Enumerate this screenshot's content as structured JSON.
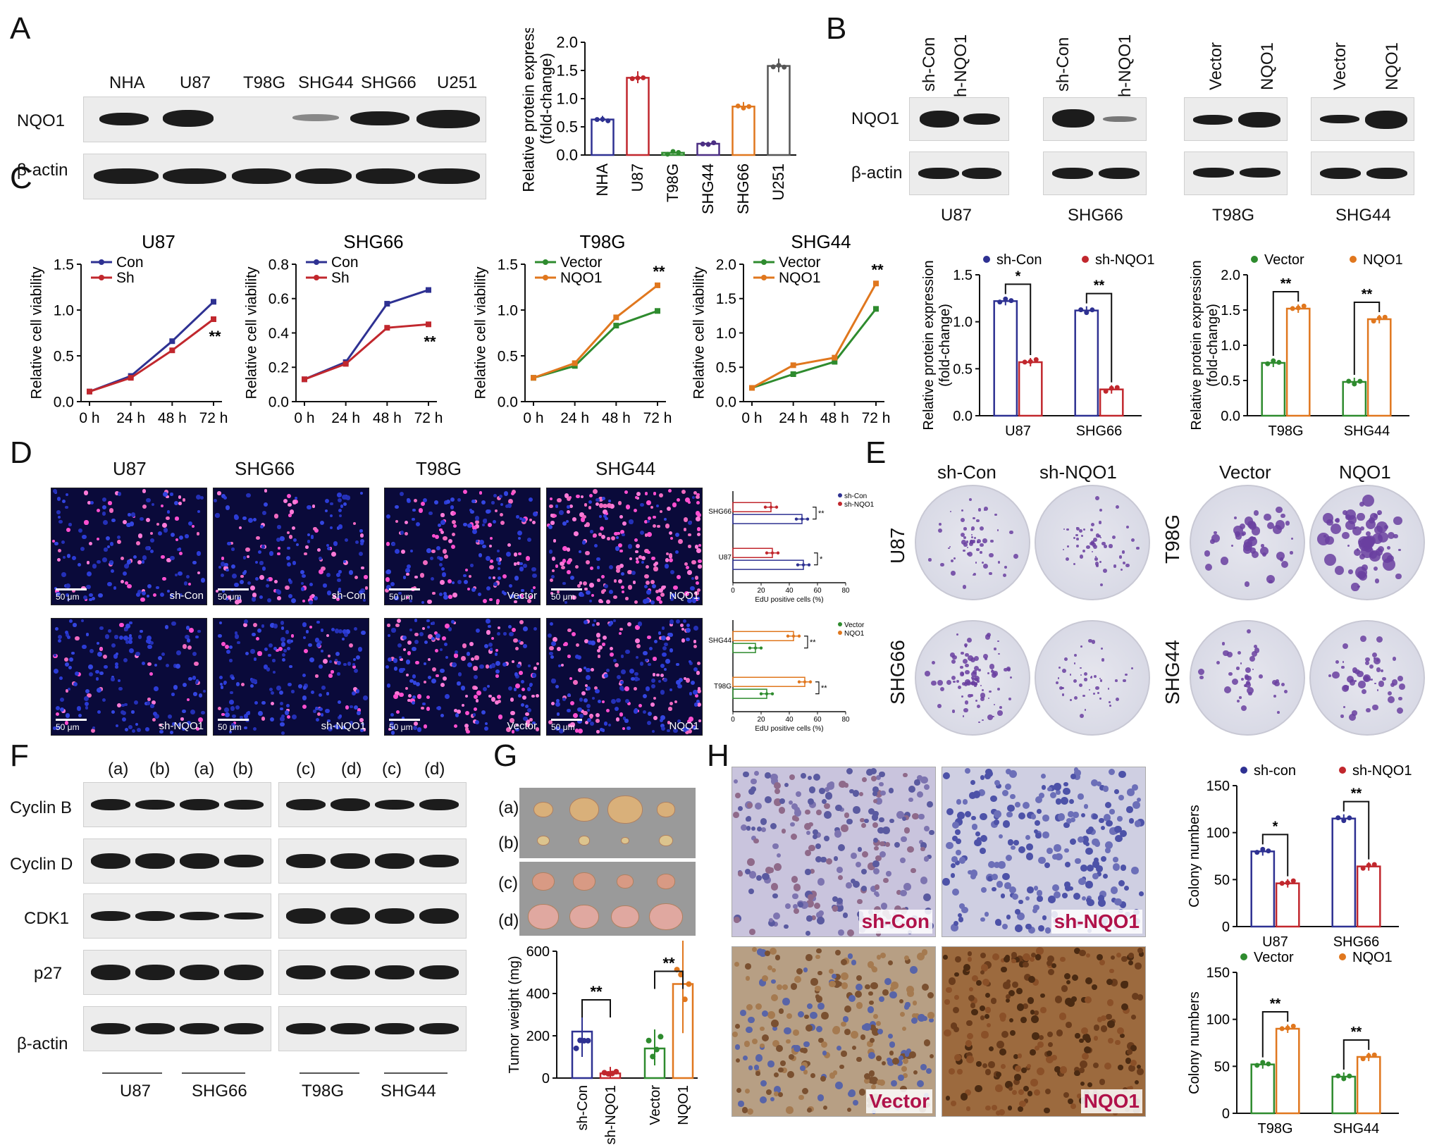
{
  "panels": {
    "A": "A",
    "B": "B",
    "C": "C",
    "D": "D",
    "E": "E",
    "F": "F",
    "G": "G",
    "H": "H"
  },
  "panelA": {
    "lanes": [
      "NHA",
      "U87",
      "T98G",
      "SHG44",
      "SHG66",
      "U251"
    ],
    "rows": [
      "NQO1",
      "β-actin"
    ]
  },
  "panelB": {
    "lane_labels": [
      "sh-Con",
      "sh-NQO1",
      "sh-Con",
      "sh-NQO1",
      "Vector",
      "NQO1",
      "Vector",
      "NQO1"
    ],
    "rows": [
      "NQO1",
      "β-actin"
    ],
    "groups": [
      "U87",
      "SHG66",
      "T98G",
      "SHG44"
    ]
  },
  "panelD": {
    "top_titles": [
      "U87",
      "SHG66",
      "T98G",
      "SHG44"
    ],
    "row1_corner": [
      "sh-Con",
      "sh-Con",
      "Vector",
      "NQO1"
    ],
    "row2_corner": [
      "sh-NQO1",
      "sh-NQO1",
      "Vector",
      "NQO1"
    ],
    "scale": "50 μm"
  },
  "panelE": {
    "col_titles": [
      "sh-Con",
      "sh-NQO1",
      "Vector",
      "NQO1"
    ],
    "row_labels": [
      "U87",
      "SHG66",
      "T98G",
      "SHG44"
    ]
  },
  "panelF": {
    "lane_codes": [
      "(a)",
      "(b)",
      "(a)",
      "(b)",
      "(c)",
      "(d)",
      "(c)",
      "(d)"
    ],
    "rows": [
      "Cyclin B",
      "Cyclin D",
      "CDK1",
      "p27",
      "β-actin"
    ],
    "groups": [
      "U87",
      "SHG66",
      "T98G",
      "SHG44"
    ]
  },
  "panelG": {
    "rows": [
      "(a)",
      "(b)",
      "(c)",
      "(d)"
    ]
  },
  "panelH": {
    "labels": [
      "sh-Con",
      "sh-NQO1",
      "Vector",
      "NQO1"
    ]
  },
  "chart_data": [
    {
      "id": "A-bar",
      "type": "bar",
      "categories": [
        "NHA",
        "U87",
        "T98G",
        "SHG44",
        "SHG66",
        "U251"
      ],
      "values": [
        0.63,
        1.37,
        0.04,
        0.2,
        0.86,
        1.58
      ],
      "colors": [
        "#2e3192",
        "#c1272d",
        "#2e8b2e",
        "#4b2e83",
        "#e0771e",
        "#555555"
      ],
      "ylabel": "Relative protein expression\n(fold-change)",
      "ylim": [
        0,
        2.0
      ],
      "yticks": [
        0.0,
        0.5,
        1.0,
        1.5,
        2.0
      ]
    },
    {
      "id": "C-U87",
      "type": "line",
      "title": "U87",
      "x": [
        "0 h",
        "24 h",
        "48 h",
        "72 h"
      ],
      "series": [
        {
          "name": "Con",
          "values": [
            0.11,
            0.28,
            0.66,
            1.09
          ],
          "color": "#2e3192"
        },
        {
          "name": "Sh",
          "values": [
            0.11,
            0.26,
            0.56,
            0.9
          ],
          "color": "#c1272d"
        }
      ],
      "ylabel": "Relative cell viability",
      "ylim": [
        0,
        1.5
      ],
      "yticks": [
        0.0,
        0.5,
        1.0,
        1.5
      ],
      "annotation": "**"
    },
    {
      "id": "C-SHG66",
      "type": "line",
      "title": "SHG66",
      "x": [
        "0 h",
        "24 h",
        "48 h",
        "72 h"
      ],
      "series": [
        {
          "name": "Con",
          "values": [
            0.13,
            0.23,
            0.57,
            0.65
          ],
          "color": "#2e3192"
        },
        {
          "name": "Sh",
          "values": [
            0.13,
            0.22,
            0.43,
            0.45
          ],
          "color": "#c1272d"
        }
      ],
      "ylabel": "Relative cell viability",
      "ylim": [
        0,
        0.8
      ],
      "yticks": [
        0.0,
        0.2,
        0.4,
        0.6,
        0.8
      ],
      "annotation": "**"
    },
    {
      "id": "C-T98G",
      "type": "line",
      "title": "T98G",
      "x": [
        "0 h",
        "24 h",
        "48 h",
        "72 h"
      ],
      "series": [
        {
          "name": "Vector",
          "values": [
            0.26,
            0.39,
            0.83,
            0.99
          ],
          "color": "#2e8b2e"
        },
        {
          "name": "NQO1",
          "values": [
            0.26,
            0.42,
            0.92,
            1.27
          ],
          "color": "#e0771e"
        }
      ],
      "ylabel": "Relative cell viability",
      "ylim": [
        0,
        1.5
      ],
      "yticks": [
        0.0,
        0.5,
        1.0,
        1.5
      ],
      "annotation": "**"
    },
    {
      "id": "C-SHG44",
      "type": "line",
      "title": "SHG44",
      "x": [
        "0 h",
        "24 h",
        "48 h",
        "72 h"
      ],
      "series": [
        {
          "name": "Vector",
          "values": [
            0.2,
            0.4,
            0.58,
            1.35
          ],
          "color": "#2e8b2e"
        },
        {
          "name": "NQO1",
          "values": [
            0.2,
            0.53,
            0.64,
            1.72
          ],
          "color": "#e0771e"
        }
      ],
      "ylabel": "Relative cell viability",
      "ylim": [
        0,
        2.0
      ],
      "yticks": [
        0.0,
        0.5,
        1.0,
        1.5,
        2.0
      ],
      "annotation": "**"
    },
    {
      "id": "C-bar1",
      "type": "bar",
      "categories": [
        "U87",
        "SHG66"
      ],
      "series": [
        {
          "name": "sh-Con",
          "values": [
            1.22,
            1.12
          ],
          "color": "#2e3192"
        },
        {
          "name": "sh-NQO1",
          "values": [
            0.57,
            0.28
          ],
          "color": "#c1272d"
        }
      ],
      "ylabel": "Relative protein expression\n(fold-change)",
      "ylim": [
        0,
        1.5
      ],
      "yticks": [
        0.0,
        0.5,
        1.0,
        1.5
      ],
      "significance": [
        "*",
        "**"
      ]
    },
    {
      "id": "C-bar2",
      "type": "bar",
      "categories": [
        "T98G",
        "SHG44"
      ],
      "series": [
        {
          "name": "Vector",
          "values": [
            0.75,
            0.48
          ],
          "color": "#2e8b2e"
        },
        {
          "name": "NQO1",
          "values": [
            1.52,
            1.37
          ],
          "color": "#e0771e"
        }
      ],
      "ylabel": "Relative protein expression\n(fold-change)",
      "ylim": [
        0,
        2.0
      ],
      "yticks": [
        0.0,
        0.5,
        1.0,
        1.5,
        2.0
      ],
      "significance": [
        "**",
        "**"
      ]
    },
    {
      "id": "D-bar1",
      "type": "bar",
      "orientation": "horizontal",
      "categories": [
        "SHG66",
        "U87"
      ],
      "series": [
        {
          "name": "sh-Con",
          "values": [
            49,
            50
          ],
          "color": "#2e3192"
        },
        {
          "name": "sh-NQO1",
          "values": [
            27,
            28
          ],
          "color": "#c1272d"
        }
      ],
      "xlabel": "EdU positive cells (%)",
      "xlim": [
        0,
        80
      ],
      "xticks": [
        0,
        20,
        40,
        60,
        80
      ],
      "significance": [
        "**",
        "*"
      ]
    },
    {
      "id": "D-bar2",
      "type": "bar",
      "orientation": "horizontal",
      "categories": [
        "SHG44",
        "T98G"
      ],
      "series": [
        {
          "name": "Vector",
          "values": [
            16,
            24
          ],
          "color": "#2e8b2e"
        },
        {
          "name": "NQO1",
          "values": [
            43,
            51
          ],
          "color": "#e0771e"
        }
      ],
      "xlabel": "EdU positive cells (%)",
      "xlim": [
        0,
        80
      ],
      "xticks": [
        0,
        20,
        40,
        60,
        80
      ],
      "significance": [
        "**",
        "**"
      ]
    },
    {
      "id": "G-bar",
      "type": "bar",
      "categories": [
        "sh-Con",
        "sh-NQO1",
        "Vector",
        "NQO1"
      ],
      "values": [
        220,
        22,
        140,
        445
      ],
      "colors": [
        "#2e3192",
        "#c1272d",
        "#2e8b2e",
        "#e0771e"
      ],
      "ylabel": "Tumor weight (mg)",
      "ylim": [
        0,
        600
      ],
      "yticks": [
        0,
        200,
        400,
        600
      ],
      "significance": [
        "**",
        "**"
      ]
    },
    {
      "id": "H-bar1",
      "type": "bar",
      "categories": [
        "U87",
        "SHG66"
      ],
      "series": [
        {
          "name": "sh-con",
          "values": [
            80,
            115
          ],
          "color": "#2e3192"
        },
        {
          "name": "sh-NQO1",
          "values": [
            46,
            64
          ],
          "color": "#c1272d"
        }
      ],
      "ylabel": "Colony numbers",
      "ylim": [
        0,
        150
      ],
      "yticks": [
        0,
        50,
        100,
        150
      ],
      "significance": [
        "*",
        "**"
      ]
    },
    {
      "id": "H-bar2",
      "type": "bar",
      "categories": [
        "T98G",
        "SHG44"
      ],
      "series": [
        {
          "name": "Vector",
          "values": [
            52,
            39
          ],
          "color": "#2e8b2e"
        },
        {
          "name": "NQO1",
          "values": [
            90,
            60
          ],
          "color": "#e0771e"
        }
      ],
      "ylabel": "Colony numbers",
      "ylim": [
        0,
        150
      ],
      "yticks": [
        0,
        50,
        100,
        150
      ],
      "significance": [
        "**",
        "**"
      ]
    }
  ]
}
